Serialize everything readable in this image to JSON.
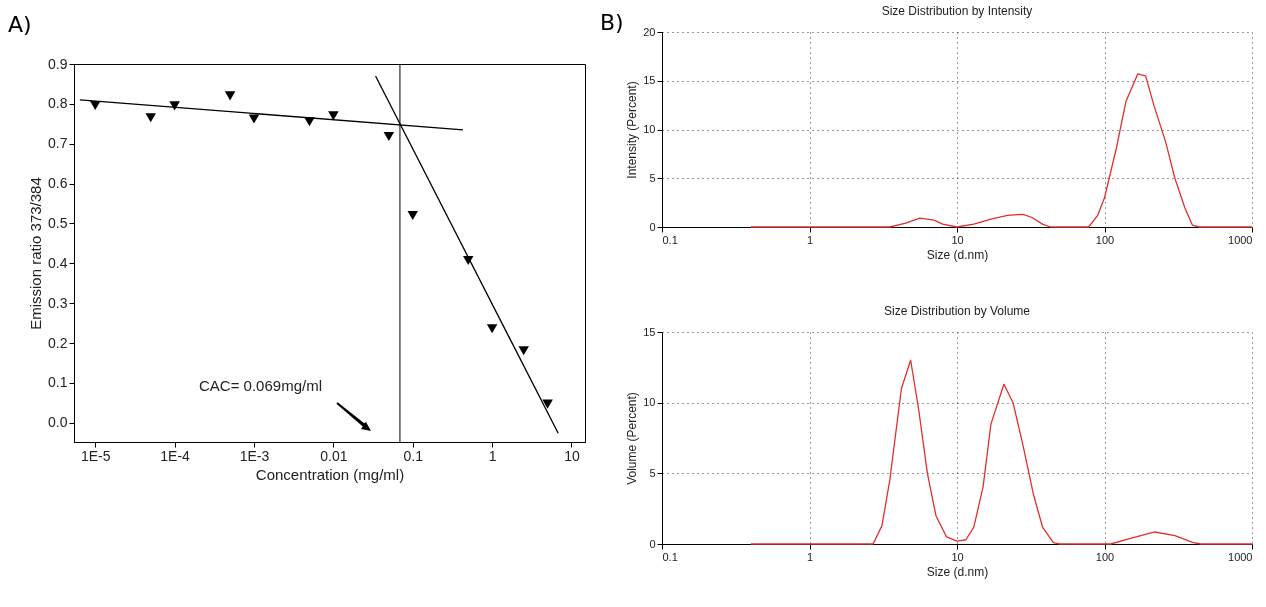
{
  "chart_data": [
    {
      "type": "scatter",
      "annotations": [
        "A)",
        "CAC= 0.069mg/ml"
      ],
      "xlabel": "Concentration (mg/ml)",
      "ylabel": "Emission ratio 373/384",
      "log": "x",
      "grid": false,
      "xlim": [
        5.4e-06,
        14.8
      ],
      "ylim": [
        -0.048,
        0.9
      ],
      "xticks": [
        {
          "value": 1e-05,
          "label": "1E-5"
        },
        {
          "value": 0.0001,
          "label": "1E-4"
        },
        {
          "value": 0.001,
          "label": "1E-3"
        },
        0.01,
        0.1,
        1,
        10
      ],
      "yticks": [
        {
          "value": 0,
          "label": "0.0"
        },
        0.1,
        0.2,
        0.3,
        0.4,
        0.5,
        0.6,
        0.7,
        0.8,
        0.9
      ],
      "ref_lines": [
        {
          "axis": "x",
          "value": 0.069,
          "color": "#000000"
        }
      ],
      "series": [
        {
          "marker": "triangle",
          "color": "#000000",
          "x": [
            1e-05,
            5e-05,
            0.0001,
            0.0005,
            0.001,
            0.005,
            0.01,
            0.05,
            0.1,
            0.5,
            1,
            2.5,
            5
          ],
          "values": [
            0.796,
            0.765,
            0.795,
            0.82,
            0.762,
            0.755,
            0.77,
            0.718,
            0.52,
            0.407,
            0.236,
            0.181,
            0.047
          ]
        },
        {
          "type": "line",
          "marker": "none",
          "color": "#000000",
          "x": [
            6.4e-06,
            0.43
          ],
          "values": [
            0.81,
            0.735
          ]
        },
        {
          "type": "line",
          "marker": "none",
          "color": "#000000",
          "x": [
            0.034,
            6.8
          ],
          "values": [
            0.87,
            -0.026
          ]
        }
      ]
    },
    {
      "type": "line",
      "annotations": [
        "B)"
      ],
      "title": "Size Distribution by Intensity",
      "xlabel": "Size (d.nm)",
      "ylabel": "Intensity (Percent)",
      "log": "x",
      "grid": true,
      "xlim": [
        0.1,
        1000
      ],
      "ylim": [
        0,
        20
      ],
      "xticks": [
        0.1,
        1,
        10,
        100,
        1000
      ],
      "yticks": [
        0,
        5,
        10,
        15,
        20
      ],
      "series": [
        {
          "color": "#e0302c",
          "x": [
            0.4,
            3.5,
            4.5,
            5.6,
            7,
            8,
            10,
            13,
            17,
            22,
            28,
            32,
            38,
            43,
            78,
            90,
            100,
            120,
            140,
            168,
            190,
            216,
            260,
            300,
            350,
            394,
            440,
            1000
          ],
          "values": [
            0,
            0,
            0.4,
            0.9,
            0.7,
            0.3,
            0,
            0.3,
            0.8,
            1.2,
            1.3,
            1.0,
            0.3,
            0,
            0,
            1.2,
            3,
            8,
            12.9,
            15.7,
            15.5,
            12.5,
            8.7,
            5,
            2,
            0.2,
            0,
            0
          ]
        }
      ]
    },
    {
      "type": "line",
      "title": "Size Distribution by Volume",
      "xlabel": "Size (d.nm)",
      "ylabel": "Volume (Percent)",
      "log": "x",
      "grid": true,
      "xlim": [
        0.1,
        1000
      ],
      "ylim": [
        0,
        15
      ],
      "xticks": [
        0.1,
        1,
        10,
        100,
        1000
      ],
      "yticks": [
        0,
        5,
        10,
        15
      ],
      "series": [
        {
          "color": "#e0302c",
          "x": [
            0.4,
            2.7,
            3.1,
            3.5,
            4.2,
            4.85,
            5.5,
            6.3,
            7.2,
            8.5,
            10,
            11.5,
            13,
            15,
            17,
            20.8,
            24,
            28,
            33,
            38,
            45,
            50,
            110,
            150,
            220,
            300,
            400,
            450,
            1000
          ],
          "values": [
            0,
            0,
            1.3,
            4.5,
            11,
            13,
            9.5,
            5,
            2,
            0.5,
            0.2,
            0.3,
            1.2,
            4,
            8.5,
            11.3,
            10,
            7,
            3.5,
            1.2,
            0.1,
            0,
            0,
            0.4,
            0.85,
            0.6,
            0.1,
            0,
            0
          ]
        }
      ]
    }
  ]
}
